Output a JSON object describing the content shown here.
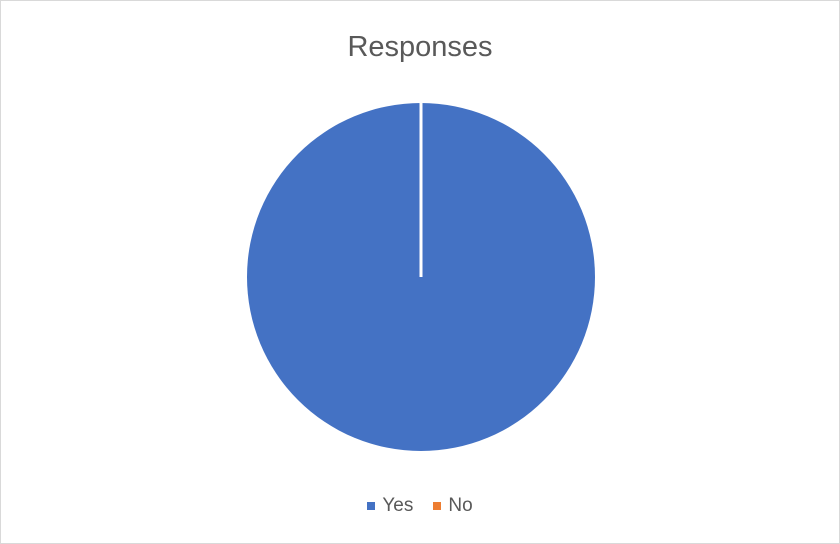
{
  "chart_data": {
    "type": "pie",
    "title": "Responses",
    "categories": [
      "Yes",
      "No"
    ],
    "values": [
      100,
      0
    ],
    "colors": [
      "#4472C4",
      "#ED7D31"
    ],
    "legend_position": "bottom",
    "start_angle_deg": 0,
    "slice_border_color": "#ffffff"
  }
}
